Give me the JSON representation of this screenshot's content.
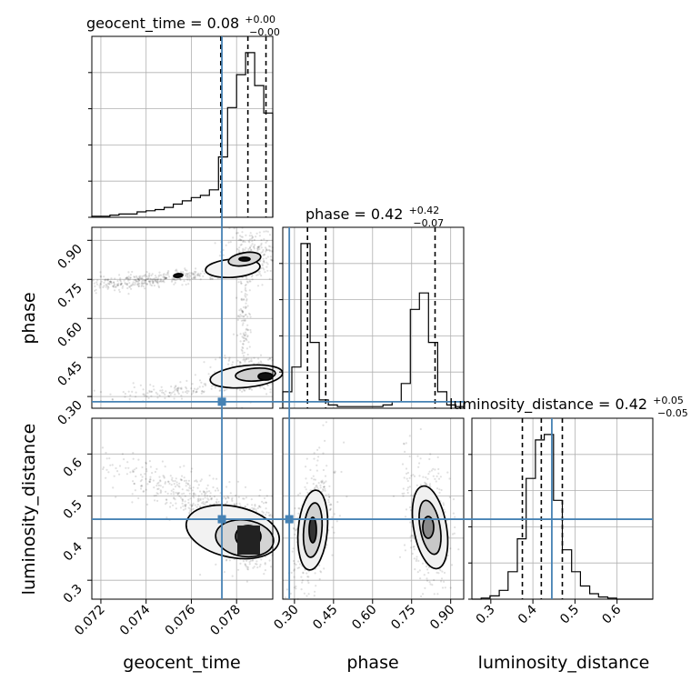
{
  "chart_data": {
    "type": "corner",
    "parameters": [
      "geocent_time",
      "phase",
      "luminosity_distance"
    ],
    "truths": {
      "geocent_time": 0.07735,
      "phase": 0.28,
      "luminosity_distance": 0.445
    },
    "titles": [
      {
        "param": "geocent_time",
        "label": "geocent_time = 0.08",
        "sup": "+0.00",
        "sub": "−0.00"
      },
      {
        "param": "phase",
        "label": "phase = 0.42",
        "sup": "+0.42",
        "sub": "−0.07"
      },
      {
        "param": "luminosity_distance",
        "label": "luminosity_distance = 0.42",
        "sup": "+0.05",
        "sub": "−0.05"
      }
    ],
    "axis_labels": {
      "x": [
        "geocent_time",
        "phase",
        "luminosity_distance"
      ],
      "y": [
        "phase",
        "luminosity_distance"
      ]
    },
    "ranges": {
      "geocent_time": [
        0.0716,
        0.0796
      ],
      "phase": [
        0.255,
        0.95
      ],
      "luminosity_distance": [
        0.255,
        0.685
      ]
    },
    "ticks": {
      "geocent_time": [
        0.072,
        0.074,
        0.076,
        0.078
      ],
      "phase": [
        0.3,
        0.45,
        0.6,
        0.75,
        0.9
      ],
      "luminosity_distance_x": [
        0.3,
        0.4,
        0.5,
        0.6
      ],
      "luminosity_distance_y": [
        0.3,
        0.4,
        0.5,
        0.6
      ]
    },
    "tick_labels": {
      "geocent_time": [
        "0.072",
        "0.074",
        "0.076",
        "0.078"
      ],
      "phase": [
        "0.30",
        "0.45",
        "0.60",
        "0.75",
        "0.90"
      ],
      "luminosity_distance_x": [
        "0.3",
        "0.4",
        "0.5",
        "0.6"
      ],
      "luminosity_distance_y": [
        "0.3",
        "0.4",
        "0.5",
        "0.6"
      ]
    },
    "quantiles": {
      "geocent_time": [
        0.0773,
        0.0785,
        0.0793
      ],
      "phase": [
        0.35,
        0.42,
        0.84
      ],
      "luminosity_distance": [
        0.375,
        0.42,
        0.47
      ]
    },
    "histograms": {
      "geocent_time": {
        "edges": [
          0.0716,
          0.072,
          0.0724,
          0.0728,
          0.0732,
          0.0736,
          0.074,
          0.0744,
          0.0748,
          0.0752,
          0.0756,
          0.076,
          0.0764,
          0.0768,
          0.0772,
          0.0776,
          0.078,
          0.0784,
          0.0788,
          0.0792,
          0.0796
        ],
        "counts": [
          1,
          1,
          2,
          3,
          3,
          5,
          6,
          7,
          9,
          12,
          15,
          18,
          20,
          25,
          55,
          100,
          130,
          150,
          120,
          95
        ]
      },
      "phase": {
        "edges": [
          0.255,
          0.29,
          0.325,
          0.36,
          0.395,
          0.43,
          0.465,
          0.5,
          0.535,
          0.57,
          0.605,
          0.64,
          0.675,
          0.71,
          0.745,
          0.78,
          0.815,
          0.85,
          0.885,
          0.92,
          0.95
        ],
        "counts": [
          10,
          25,
          100,
          40,
          5,
          2,
          1,
          1,
          1,
          1,
          1,
          2,
          4,
          15,
          60,
          70,
          40,
          10,
          2,
          1
        ]
      },
      "luminosity_distance": {
        "edges": [
          0.255,
          0.277,
          0.298,
          0.32,
          0.341,
          0.363,
          0.384,
          0.406,
          0.427,
          0.449,
          0.47,
          0.492,
          0.513,
          0.535,
          0.556,
          0.578,
          0.599,
          0.621,
          0.642,
          0.664,
          0.685
        ],
        "counts": [
          0,
          1,
          3,
          8,
          25,
          55,
          110,
          145,
          150,
          90,
          45,
          25,
          12,
          5,
          2,
          1,
          0,
          0,
          0,
          0
        ]
      }
    },
    "grid": true
  }
}
